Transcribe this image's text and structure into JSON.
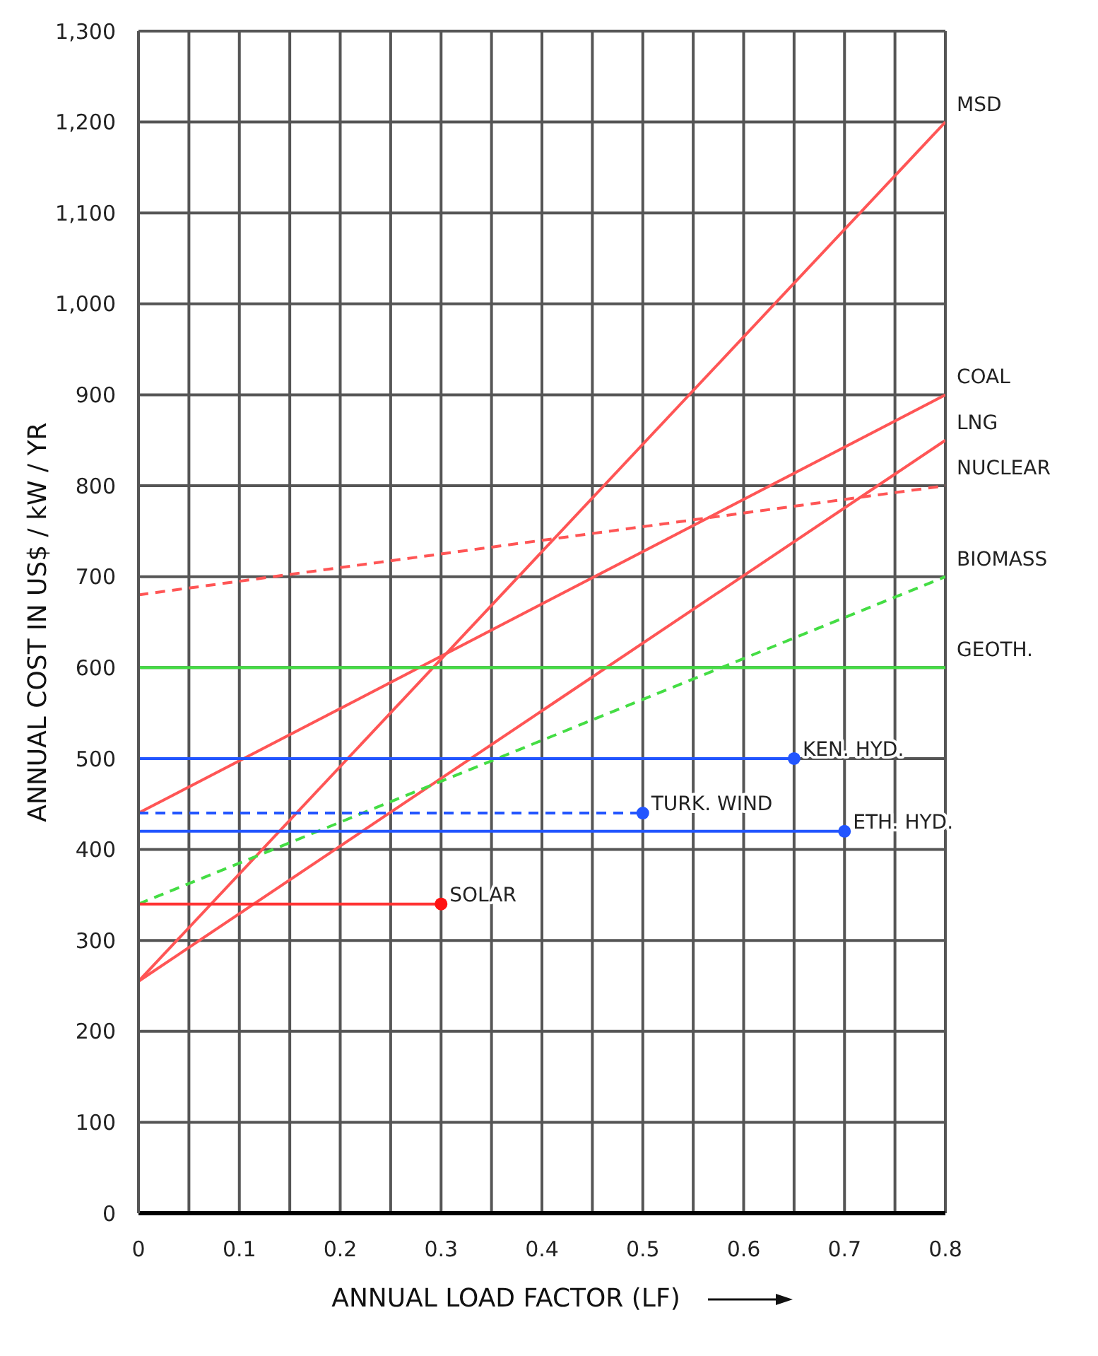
{
  "chart_data": {
    "type": "line",
    "xlabel": "ANNUAL LOAD FACTOR (LF)",
    "ylabel": "ANNUAL COST IN US$ / kW / YR",
    "xlim": [
      0,
      0.8
    ],
    "xticks": [
      0,
      {
        "value": 0.05,
        "label": null
      },
      0.1,
      {
        "value": 0.15,
        "label": null
      },
      0.2,
      {
        "value": 0.25,
        "label": null
      },
      0.3,
      {
        "value": 0.35,
        "label": null
      },
      0.4,
      {
        "value": 0.45,
        "label": null
      },
      0.5,
      {
        "value": 0.55,
        "label": null
      },
      0.6,
      {
        "value": 0.65,
        "label": null
      },
      0.7,
      {
        "value": 0.75,
        "label": null
      },
      0.8
    ],
    "ylim": [
      0,
      1300
    ],
    "yticks": [
      0,
      100,
      200,
      300,
      400,
      500,
      600,
      700,
      800,
      900,
      {
        "value": 1000,
        "label": "1,000"
      },
      {
        "value": 1100,
        "label": "1,100"
      },
      {
        "value": 1200,
        "label": "1,200"
      },
      {
        "value": 1300,
        "label": "1,300"
      }
    ],
    "grid": true,
    "legend": false,
    "marker": "none",
    "series": [
      {
        "name": "MSD",
        "color": "#ff5555",
        "x": [
          0,
          0.8
        ],
        "values": [
          255,
          1200
        ],
        "line_style": "solid"
      },
      {
        "name": "COAL",
        "color": "#ff5555",
        "x": [
          0,
          0.8
        ],
        "values": [
          440,
          900
        ],
        "line_style": "solid"
      },
      {
        "name": "LNG",
        "color": "#ff5555",
        "x": [
          0,
          0.8
        ],
        "values": [
          255,
          850
        ],
        "line_style": "solid"
      },
      {
        "name": "NUCLEAR",
        "color": "#ff5555",
        "x": [
          0,
          0.8
        ],
        "values": [
          680,
          800
        ],
        "line_style": "dashed"
      },
      {
        "name": "BIOMASS",
        "color": "#44dd44",
        "x": [
          0,
          0.8
        ],
        "values": [
          340,
          700
        ],
        "line_style": "dashed"
      },
      {
        "name": "GEOTH.",
        "color": "#44dd44",
        "x": [
          0,
          0.8
        ],
        "values": [
          600,
          600
        ],
        "line_style": "solid"
      },
      {
        "name": "KEN. HYD.",
        "color": "#2255ff",
        "x": [
          0,
          0.65
        ],
        "values": [
          500,
          500
        ],
        "line_style": "solid"
      },
      {
        "name": "TURK. WIND",
        "color": "#2255ff",
        "x": [
          0,
          0.5
        ],
        "values": [
          440,
          440
        ],
        "line_style": "dashed"
      },
      {
        "name": "ETH. HYD.",
        "color": "#2255ff",
        "x": [
          0,
          0.7
        ],
        "values": [
          420,
          420
        ],
        "line_style": "solid"
      },
      {
        "name": "SOLAR",
        "color": "#ff3333",
        "x": [
          0,
          0.3
        ],
        "values": [
          340,
          340
        ],
        "line_style": "solid"
      },
      {
        "type": "scatter",
        "color": "#2255ff",
        "x": [
          0.65,
          0.5,
          0.7
        ],
        "values": [
          500,
          440,
          420
        ],
        "marker": "circle"
      },
      {
        "type": "scatter",
        "color": "#ff1111",
        "x": [
          0.3
        ],
        "values": [
          340
        ],
        "marker": "circle"
      }
    ]
  }
}
